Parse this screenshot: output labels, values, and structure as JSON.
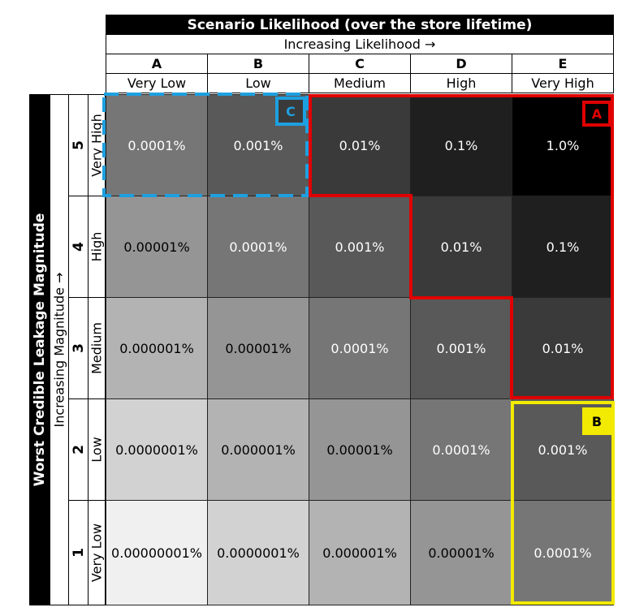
{
  "header": {
    "title": "Scenario Likelihood (over the store lifetime)",
    "subtitle": "Increasing Likelihood →"
  },
  "columns": [
    {
      "letter": "A",
      "label": "Very Low"
    },
    {
      "letter": "B",
      "label": "Low"
    },
    {
      "letter": "C",
      "label": "Medium"
    },
    {
      "letter": "D",
      "label": "High"
    },
    {
      "letter": "E",
      "label": "Very High"
    }
  ],
  "side": {
    "title": "Worst Credible Leakage Magnitude",
    "subtitle": "Increasing Magnitude →"
  },
  "rows": [
    {
      "number": "5",
      "label": "Very High",
      "cells": [
        {
          "text": "0.0001%",
          "bg": "#767676"
        },
        {
          "text": "0.001%",
          "bg": "#595959"
        },
        {
          "text": "0.01%",
          "bg": "#3a3a3a"
        },
        {
          "text": "0.1%",
          "bg": "#1f1f1f"
        },
        {
          "text": "1.0%",
          "bg": "#000000"
        }
      ]
    },
    {
      "number": "4",
      "label": "High",
      "cells": [
        {
          "text": "0.00001%",
          "bg": "#959595",
          "dark": true
        },
        {
          "text": "0.0001%",
          "bg": "#767676"
        },
        {
          "text": "0.001%",
          "bg": "#595959"
        },
        {
          "text": "0.01%",
          "bg": "#3a3a3a"
        },
        {
          "text": "0.1%",
          "bg": "#1f1f1f"
        }
      ]
    },
    {
      "number": "3",
      "label": "Medium",
      "cells": [
        {
          "text": "0.000001%",
          "bg": "#b3b3b3",
          "dark": true
        },
        {
          "text": "0.00001%",
          "bg": "#959595",
          "dark": true
        },
        {
          "text": "0.0001%",
          "bg": "#767676"
        },
        {
          "text": "0.001%",
          "bg": "#595959"
        },
        {
          "text": "0.01%",
          "bg": "#3a3a3a"
        }
      ]
    },
    {
      "number": "2",
      "label": "Low",
      "cells": [
        {
          "text": "0.0000001%",
          "bg": "#d2d2d2",
          "dark": true
        },
        {
          "text": "0.000001%",
          "bg": "#b3b3b3",
          "dark": true
        },
        {
          "text": "0.00001%",
          "bg": "#959595",
          "dark": true
        },
        {
          "text": "0.0001%",
          "bg": "#767676"
        },
        {
          "text": "0.001%",
          "bg": "#595959"
        }
      ]
    },
    {
      "number": "1",
      "label": "Very Low",
      "cells": [
        {
          "text": "0.00000001%",
          "bg": "#f0f0f0",
          "dark": true
        },
        {
          "text": "0.0000001%",
          "bg": "#d2d2d2",
          "dark": true
        },
        {
          "text": "0.000001%",
          "bg": "#b3b3b3",
          "dark": true
        },
        {
          "text": "0.00001%",
          "bg": "#959595",
          "dark": true
        },
        {
          "text": "0.0001%",
          "bg": "#767676"
        }
      ]
    }
  ],
  "regions": {
    "a": {
      "label": "A",
      "color": "#e00000"
    },
    "b": {
      "label": "B",
      "color": "#f2ea00"
    },
    "c": {
      "label": "C",
      "color": "#1ea0e0"
    }
  }
}
